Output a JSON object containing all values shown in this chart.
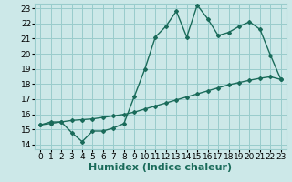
{
  "xlabel": "Humidex (Indice chaleur)",
  "xlim": [
    -0.5,
    23.5
  ],
  "ylim": [
    13.7,
    23.3
  ],
  "yticks": [
    14,
    15,
    16,
    17,
    18,
    19,
    20,
    21,
    22,
    23
  ],
  "xticks": [
    0,
    1,
    2,
    3,
    4,
    5,
    6,
    7,
    8,
    9,
    10,
    11,
    12,
    13,
    14,
    15,
    16,
    17,
    18,
    19,
    20,
    21,
    22,
    23
  ],
  "line1_x": [
    0,
    1,
    2,
    3,
    4,
    5,
    6,
    7,
    8,
    9,
    10,
    11,
    12,
    13,
    14,
    15,
    16,
    17,
    18,
    19,
    20,
    21,
    22,
    23
  ],
  "line1_y": [
    15.3,
    15.5,
    15.5,
    14.8,
    14.2,
    14.9,
    14.9,
    15.1,
    15.4,
    17.2,
    19.0,
    21.1,
    21.8,
    22.8,
    21.1,
    23.2,
    22.3,
    21.2,
    21.4,
    21.8,
    22.1,
    21.6,
    19.9,
    18.3
  ],
  "line2_x": [
    0,
    1,
    2,
    3,
    4,
    5,
    6,
    7,
    8,
    9,
    10,
    11,
    12,
    13,
    14,
    15,
    16,
    17,
    18,
    19,
    20,
    21,
    22,
    23
  ],
  "line2_y": [
    15.3,
    15.4,
    15.5,
    15.6,
    15.65,
    15.7,
    15.8,
    15.9,
    16.0,
    16.15,
    16.35,
    16.55,
    16.75,
    16.95,
    17.15,
    17.35,
    17.55,
    17.75,
    17.95,
    18.1,
    18.25,
    18.38,
    18.48,
    18.3
  ],
  "line_color": "#1a6b5a",
  "bg_color": "#cce8e8",
  "grid_color": "#99cccc",
  "tick_fontsize": 6.5,
  "xlabel_fontsize": 8
}
